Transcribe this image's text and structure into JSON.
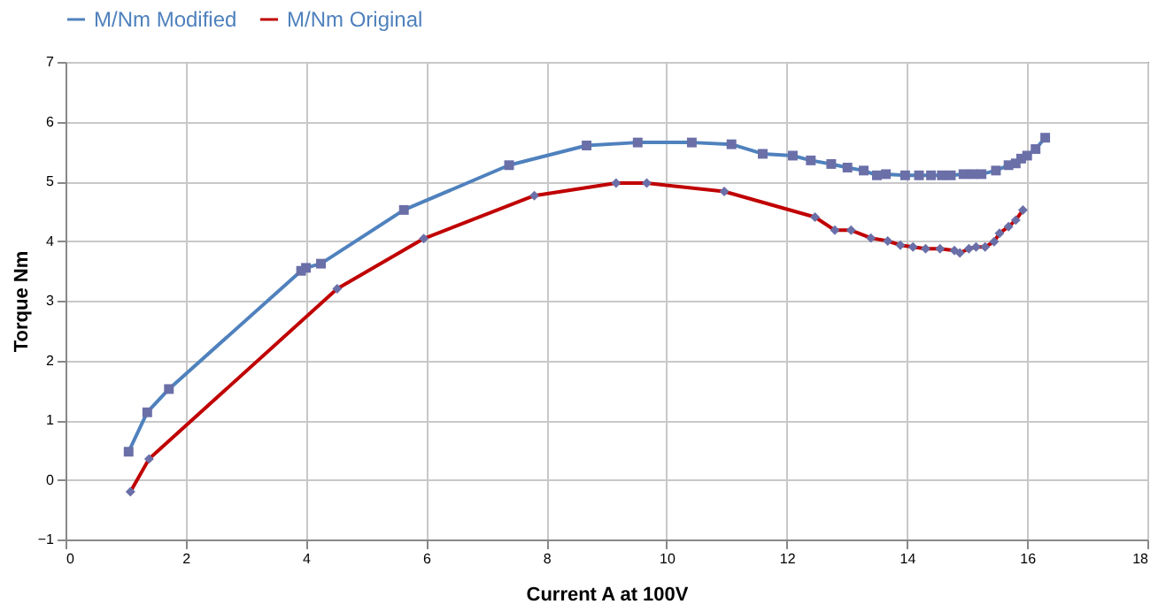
{
  "chart_data": {
    "type": "line",
    "xlabel": "Current A  at 100V",
    "ylabel": "Torque Nm",
    "xlim": [
      0,
      18
    ],
    "xticks": [
      0,
      2,
      4,
      6,
      8,
      10,
      12,
      14,
      16,
      18
    ],
    "ylim": [
      -1,
      7
    ],
    "yticks": [
      -1,
      0,
      1,
      2,
      3,
      4,
      5,
      6,
      7
    ],
    "grid": true,
    "legend": "top",
    "line_style": "solid",
    "series": [
      {
        "name": "M/Nm Modified",
        "color": "#4f81bd",
        "marker": "square",
        "x": [
          1.05,
          1.36,
          1.72,
          3.92,
          4.0,
          4.25,
          5.63,
          7.38,
          8.67,
          9.52,
          10.42,
          11.08,
          11.6,
          12.1,
          12.4,
          12.74,
          13.01,
          13.28,
          13.5,
          13.65,
          13.97,
          14.2,
          14.4,
          14.58,
          14.73,
          14.94,
          15.09,
          15.24,
          15.48,
          15.69,
          15.81,
          15.9,
          16.0,
          16.14,
          16.3
        ],
        "values": [
          0.47,
          1.13,
          1.52,
          3.5,
          3.55,
          3.62,
          4.52,
          5.27,
          5.6,
          5.65,
          5.65,
          5.62,
          5.46,
          5.43,
          5.35,
          5.29,
          5.23,
          5.18,
          5.1,
          5.12,
          5.1,
          5.1,
          5.1,
          5.1,
          5.1,
          5.12,
          5.12,
          5.12,
          5.18,
          5.27,
          5.3,
          5.38,
          5.43,
          5.54,
          5.73
        ]
      },
      {
        "name": "M/Nm Original",
        "color": "#c00000",
        "marker": "diamond",
        "x": [
          1.08,
          1.39,
          4.52,
          5.96,
          7.8,
          9.16,
          9.67,
          10.96,
          12.47,
          12.8,
          13.07,
          13.4,
          13.68,
          13.89,
          14.1,
          14.31,
          14.55,
          14.79,
          14.88,
          15.03,
          15.15,
          15.3,
          15.45,
          15.54,
          15.69,
          15.81,
          15.93
        ],
        "values": [
          -0.2,
          0.35,
          3.2,
          4.04,
          4.76,
          4.97,
          4.97,
          4.83,
          4.4,
          4.18,
          4.18,
          4.05,
          4.0,
          3.93,
          3.9,
          3.87,
          3.87,
          3.84,
          3.8,
          3.87,
          3.9,
          3.9,
          3.99,
          4.13,
          4.24,
          4.35,
          4.52
        ]
      }
    ]
  }
}
